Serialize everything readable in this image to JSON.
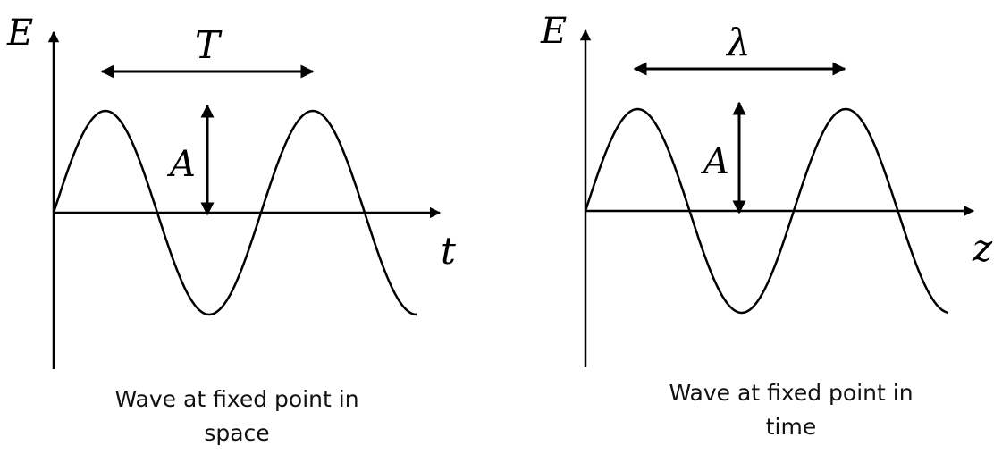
{
  "left_panel": {
    "y_label": "E",
    "x_label": "t",
    "span_label": "T",
    "amp_label": "A",
    "caption_line1": "Wave at fixed point in",
    "caption_line2": "space"
  },
  "right_panel": {
    "y_label": "E",
    "x_label": "z",
    "span_label": "λ",
    "amp_label": "A",
    "caption_line1": "Wave at fixed point in",
    "caption_line2": "time"
  }
}
